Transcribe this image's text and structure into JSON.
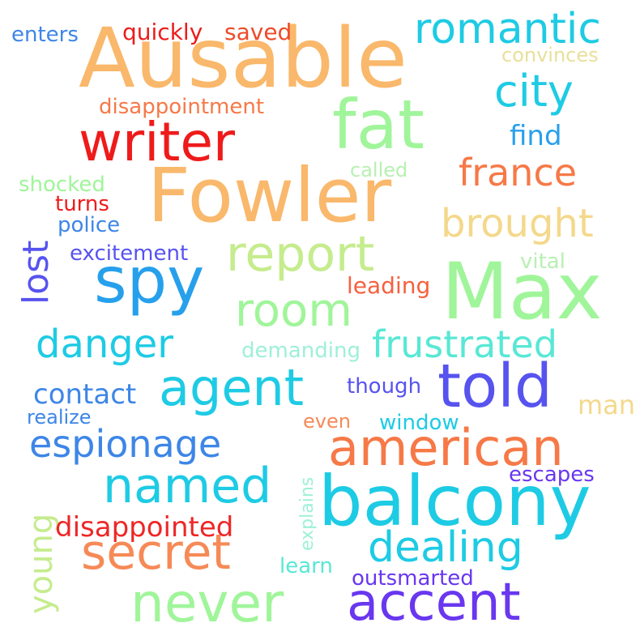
{
  "words": [
    {
      "text": "Ausable",
      "color": "#f9b86b"
    },
    {
      "text": "Fowler",
      "color": "#f9b86b"
    },
    {
      "text": "Max",
      "color": "#a0f59a"
    },
    {
      "text": "balcony",
      "color": "#1ecbe4"
    },
    {
      "text": "fat",
      "color": "#a0f59a"
    },
    {
      "text": "writer",
      "color": "#ee1b1b"
    },
    {
      "text": "spy",
      "color": "#27a0ec"
    },
    {
      "text": "report",
      "color": "#c5ec8d"
    },
    {
      "text": "romantic",
      "color": "#1ecbe4"
    },
    {
      "text": "city",
      "color": "#1ecbe4"
    },
    {
      "text": "france",
      "color": "#f67947"
    },
    {
      "text": "brought",
      "color": "#f4d88b"
    },
    {
      "text": "room",
      "color": "#a0f59a"
    },
    {
      "text": "agent",
      "color": "#1ecbe4"
    },
    {
      "text": "told",
      "color": "#5753ef"
    },
    {
      "text": "american",
      "color": "#f67947"
    },
    {
      "text": "danger",
      "color": "#1ecbe4"
    },
    {
      "text": "frustrated",
      "color": "#58e8d5"
    },
    {
      "text": "espionage",
      "color": "#3d86e7"
    },
    {
      "text": "named",
      "color": "#1ecbe4"
    },
    {
      "text": "secret",
      "color": "#f68a57"
    },
    {
      "text": "never",
      "color": "#a0f59a"
    },
    {
      "text": "accent",
      "color": "#6937ef"
    },
    {
      "text": "dealing",
      "color": "#1ecbe4"
    },
    {
      "text": "young",
      "color": "#c5ec8d"
    },
    {
      "text": "lost",
      "color": "#5753ef"
    },
    {
      "text": "disappointed",
      "color": "#ee2626"
    },
    {
      "text": "contact",
      "color": "#3d86e7"
    },
    {
      "text": "disappointment",
      "color": "#f67947"
    },
    {
      "text": "quickly",
      "color": "#ee1b1b"
    },
    {
      "text": "saved",
      "color": "#ee4a2a"
    },
    {
      "text": "enters",
      "color": "#3d86e7"
    },
    {
      "text": "convinces",
      "color": "#e8e09b"
    },
    {
      "text": "find",
      "color": "#27a0ec"
    },
    {
      "text": "called",
      "color": "#b8f0b2"
    },
    {
      "text": "shocked",
      "color": "#a0f59a"
    },
    {
      "text": "turns",
      "color": "#ee1b1b"
    },
    {
      "text": "police",
      "color": "#3d86e7"
    },
    {
      "text": "excitement",
      "color": "#5753ef"
    },
    {
      "text": "vital",
      "color": "#b8f0b2"
    },
    {
      "text": "leading",
      "color": "#f6603e"
    },
    {
      "text": "demanding",
      "color": "#9ef0d8"
    },
    {
      "text": "though",
      "color": "#5753ef"
    },
    {
      "text": "man",
      "color": "#f4d88b"
    },
    {
      "text": "realize",
      "color": "#3d86e7"
    },
    {
      "text": "even",
      "color": "#f68a57"
    },
    {
      "text": "window",
      "color": "#1ecbe4"
    },
    {
      "text": "explains",
      "color": "#9ef0d8"
    },
    {
      "text": "escapes",
      "color": "#6937ef"
    },
    {
      "text": "learn",
      "color": "#58e8d5"
    },
    {
      "text": "outsmarted",
      "color": "#6937ef"
    }
  ]
}
